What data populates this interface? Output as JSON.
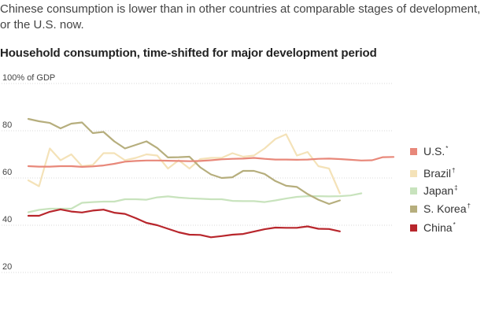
{
  "header": {
    "subtitle": "Chinese consumption is lower than in other countries at comparable stages of development, or the U.S. now.",
    "title": "Household consumption, time-shifted for major development period"
  },
  "chart_data": {
    "type": "line",
    "title": "Household consumption, time-shifted for major development period",
    "ylabel": "100% of GDP",
    "xlabel": "",
    "ylim": [
      20,
      100
    ],
    "yticks": [
      100,
      80,
      60,
      40,
      20
    ],
    "ytick_labels": [
      "100% of GDP",
      "80",
      "60",
      "40",
      "20"
    ],
    "grid": true,
    "legend_position": "right",
    "x": [
      0,
      1,
      2,
      3,
      4,
      5,
      6,
      7,
      8,
      9,
      10,
      11,
      12,
      13,
      14,
      15,
      16,
      17,
      18,
      19,
      20,
      21,
      22,
      23,
      24,
      25,
      26,
      27,
      28,
      29,
      30,
      31,
      32,
      33,
      34,
      35,
      36,
      37,
      38,
      39
    ],
    "series": [
      {
        "name": "U.S.",
        "note": "*",
        "color": "#e8887a",
        "values": [
          65,
          64.8,
          64.8,
          65,
          65,
          64.7,
          64.9,
          65.3,
          66,
          66.9,
          67.2,
          67.4,
          67.4,
          67.3,
          67.2,
          67.1,
          67.2,
          67.5,
          67.9,
          68.1,
          68.2,
          68.5,
          68.1,
          67.8,
          67.8,
          67.7,
          67.8,
          68.1,
          68.2,
          68.0,
          67.7,
          67.4,
          67.5,
          68.8,
          68.9,
          null,
          null,
          null,
          null,
          null
        ]
      },
      {
        "name": "Brazil",
        "note": "†",
        "color": "#f4e2b8",
        "values": [
          59,
          56.5,
          72.5,
          67.5,
          70,
          65,
          65.5,
          70.5,
          70.5,
          67.5,
          68.5,
          70,
          69.5,
          64,
          67.5,
          64,
          68,
          68.5,
          68.5,
          70.5,
          69,
          69.5,
          72.5,
          76.5,
          78.5,
          69.5,
          71,
          65,
          64,
          53.5,
          null,
          null,
          null,
          null,
          null,
          null,
          null,
          null,
          null,
          null
        ]
      },
      {
        "name": "Japan",
        "note": "‡",
        "color": "#c8e3bd",
        "values": [
          45.5,
          46.5,
          47,
          47,
          47,
          49.5,
          49.8,
          50,
          50,
          51,
          51,
          50.8,
          51.8,
          52.2,
          51.7,
          51.4,
          51.2,
          51,
          51,
          50.3,
          50.2,
          50.2,
          49.8,
          50.5,
          51.3,
          52,
          52.3,
          52.3,
          52.2,
          52.3,
          52.6,
          53.5,
          null,
          null,
          null,
          null,
          null,
          null,
          null,
          null
        ]
      },
      {
        "name": "S. Korea",
        "note": "†",
        "color": "#b6ae7d",
        "values": [
          85,
          84,
          83.3,
          81,
          83,
          83.5,
          79,
          79.5,
          75.5,
          72.5,
          74,
          75.5,
          72.7,
          68.7,
          68.8,
          69,
          64.5,
          61.5,
          60,
          60.3,
          63,
          63,
          61.7,
          58.7,
          56.7,
          56.2,
          53.2,
          50.8,
          49,
          50.5,
          null,
          null,
          null,
          null,
          null,
          null,
          null,
          null,
          null,
          null
        ]
      },
      {
        "name": "China",
        "note": "*",
        "color": "#b8262c",
        "values": [
          44,
          44,
          45.7,
          46.7,
          45.8,
          45.4,
          46.2,
          46.6,
          45.3,
          44.8,
          43,
          41,
          40,
          38.5,
          37,
          36,
          35.9,
          34.9,
          35.4,
          36,
          36.3,
          37.3,
          38.3,
          39,
          38.9,
          38.9,
          39.5,
          38.5,
          38.4,
          37.4,
          null,
          null,
          null,
          null,
          null,
          null,
          null,
          null,
          null,
          null
        ]
      }
    ]
  }
}
